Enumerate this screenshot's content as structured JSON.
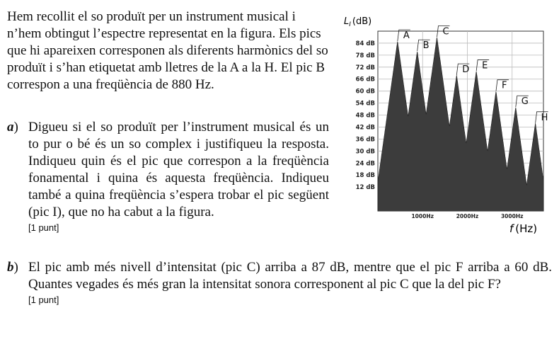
{
  "intro": "Hem recollit el so produït per un instrument musical i n’hem obtingut l’espectre representat en la figura. Els pics que hi apareixen corresponen als diferents harmònics del so produït i s’han etiquetat amb lletres de la A a la H. El pic B correspon a una freqüència de 880 Hz.",
  "question_a": {
    "label": "a",
    "text": "Digueu si el so produït per l’instrument musical és un to pur o bé és un so complex i justifiqueu la resposta. Indiqueu quin és el pic que correspon a la freqüència fonamental i quina és aquesta freqüència. Indiqueu també a quina freqüència s’espera trobar el pic següent (pic I), que no ha cabut a la figura.",
    "points": "[1 punt]"
  },
  "question_b": {
    "label": "b",
    "text": "El pic amb més nivell d’intensitat (pic C) arriba a 87 dB, mentre que el pic F arriba a 60 dB. Quantes vegades és més gran la intensitat sonora corresponent al pic C que la del pic F?",
    "points": "[1 punt]"
  },
  "chart_data": {
    "type": "area",
    "ylabel_symbol": "L",
    "ylabel_subscript": "I",
    "ylabel_unit": "(dB)",
    "xlabel_symbol": "f",
    "xlabel_unit": "(Hz)",
    "y_ticks": [
      "84 dB",
      "78 dB",
      "72 dB",
      "66 dB",
      "60 dB",
      "54 dB",
      "48 dB",
      "42 dB",
      "36 dB",
      "30 dB",
      "24 dB",
      "18 dB",
      "12 dB"
    ],
    "y_tick_values": [
      84,
      78,
      72,
      66,
      60,
      54,
      48,
      42,
      36,
      30,
      24,
      18,
      12
    ],
    "x_ticks": [
      "1000Hz",
      "2000Hz",
      "3000Hz"
    ],
    "x_tick_values": [
      1000,
      2000,
      3000
    ],
    "xlim": [
      0,
      3700
    ],
    "ylim": [
      0,
      90
    ],
    "peaks": [
      {
        "label": "A",
        "x": 440,
        "y": 85
      },
      {
        "label": "B",
        "x": 880,
        "y": 80
      },
      {
        "label": "C",
        "x": 1320,
        "y": 87
      },
      {
        "label": "D",
        "x": 1760,
        "y": 68
      },
      {
        "label": "E",
        "x": 2200,
        "y": 70
      },
      {
        "label": "F",
        "x": 2640,
        "y": 60
      },
      {
        "label": "G",
        "x": 3080,
        "y": 52
      },
      {
        "label": "H",
        "x": 3520,
        "y": 44
      }
    ],
    "fill_color": "#3c3c3c",
    "grid": true
  }
}
